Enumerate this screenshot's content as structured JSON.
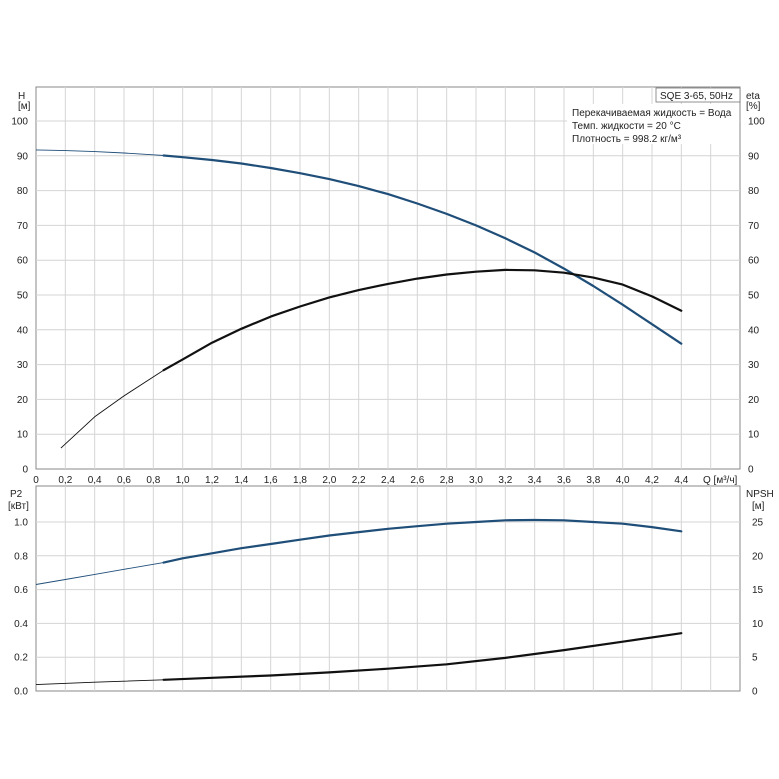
{
  "chart_data": [
    {
      "type": "line",
      "legend": {
        "title": "SQE 3-65, 50Hz",
        "lines": [
          "Перекачиваемая жидкость = Вода",
          "Темп. жидкости = 20 °C",
          "Плотность = 998.2 кг/м³"
        ],
        "placement": "top-right"
      },
      "xlabel": "Q [м³/ч]",
      "ylabel_left": [
        "H",
        "[м]"
      ],
      "ylabel_right": [
        "eta",
        "[%]"
      ],
      "xlim": [
        0,
        4.8
      ],
      "ylim": [
        0,
        100
      ],
      "xticks": [
        "0",
        "0,2",
        "0,4",
        "0,6",
        "0,8",
        "1,0",
        "1,2",
        "1,4",
        "1,6",
        "1,8",
        "2,0",
        "2,2",
        "2,4",
        "2,6",
        "2,8",
        "3,0",
        "3,2",
        "3,4",
        "3,6",
        "3,8",
        "4,0",
        "4,2",
        "4,4"
      ],
      "yticks": [
        "0",
        "10",
        "20",
        "30",
        "40",
        "50",
        "60",
        "70",
        "80",
        "90",
        "100"
      ],
      "grid": true,
      "series": [
        {
          "id": "H",
          "color": "#1f4e79",
          "x": [
            0,
            0.2,
            0.4,
            0.6,
            0.8,
            0.87,
            1.0,
            1.2,
            1.4,
            1.6,
            1.8,
            2.0,
            2.2,
            2.4,
            2.6,
            2.8,
            3.0,
            3.2,
            3.4,
            3.6,
            3.8,
            4.0,
            4.2,
            4.4
          ],
          "y": [
            91.7,
            91.5,
            91.2,
            90.8,
            90.3,
            90.1,
            89.6,
            88.8,
            87.8,
            86.5,
            85.0,
            83.3,
            81.3,
            79.0,
            76.3,
            73.3,
            70.0,
            66.3,
            62.2,
            57.6,
            52.6,
            47.2,
            41.6,
            36.0
          ],
          "bold_from_x": 0.87
        },
        {
          "id": "eta",
          "color": "#111111",
          "x": [
            0.17,
            0.4,
            0.6,
            0.87,
            1.0,
            1.2,
            1.4,
            1.6,
            1.8,
            2.0,
            2.2,
            2.4,
            2.6,
            2.8,
            3.0,
            3.2,
            3.4,
            3.6,
            3.8,
            4.0,
            4.2,
            4.4
          ],
          "y": [
            6,
            15,
            21,
            28.4,
            31.5,
            36.3,
            40.3,
            43.8,
            46.7,
            49.3,
            51.4,
            53.2,
            54.7,
            55.9,
            56.7,
            57.2,
            57.1,
            56.4,
            55.0,
            53.0,
            49.6,
            45.5
          ],
          "bold_from_x": 0.87
        }
      ]
    },
    {
      "type": "line",
      "xlabel": "",
      "ylabel_left": [
        "P2",
        "[кВт]"
      ],
      "ylabel_right": [
        "NPSH",
        "[м]"
      ],
      "xlim": [
        0,
        4.8
      ],
      "ylim_left": [
        0,
        1.0
      ],
      "ylim_right": [
        0,
        25
      ],
      "yticks_left": [
        "0.0",
        "0.2",
        "0.4",
        "0.6",
        "0.8",
        "1.0"
      ],
      "yticks_right": [
        "0",
        "5",
        "10",
        "15",
        "20",
        "25"
      ],
      "grid": true,
      "series": [
        {
          "id": "P2",
          "axis": "left",
          "color": "#1f4e79",
          "x": [
            0,
            0.2,
            0.4,
            0.6,
            0.8,
            0.87,
            1.0,
            1.2,
            1.4,
            1.6,
            1.8,
            2.0,
            2.2,
            2.4,
            2.6,
            2.8,
            3.0,
            3.2,
            3.4,
            3.6,
            3.8,
            4.0,
            4.2,
            4.4
          ],
          "y": [
            0.63,
            0.66,
            0.69,
            0.72,
            0.75,
            0.76,
            0.785,
            0.815,
            0.845,
            0.87,
            0.895,
            0.92,
            0.94,
            0.96,
            0.975,
            0.99,
            1.0,
            1.01,
            1.012,
            1.01,
            1.0,
            0.99,
            0.97,
            0.945
          ],
          "bold_from_x": 0.87
        },
        {
          "id": "NPSH",
          "axis": "right",
          "color": "#111111",
          "x": [
            0,
            0.4,
            0.87,
            1.2,
            1.6,
            2.0,
            2.4,
            2.8,
            3.2,
            3.6,
            4.0,
            4.4
          ],
          "y": [
            0.95,
            1.3,
            1.65,
            1.95,
            2.3,
            2.75,
            3.3,
            3.95,
            4.9,
            6.05,
            7.3,
            8.55
          ],
          "bold_from_x": 0.87
        }
      ]
    }
  ]
}
